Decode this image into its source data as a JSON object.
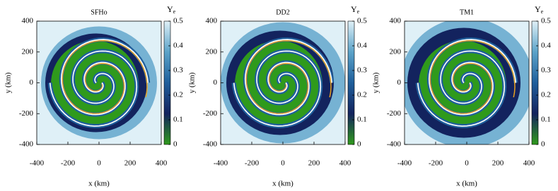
{
  "chart_data": [
    {
      "type": "heatmap",
      "title": "SFHo",
      "x_label": "x (km)",
      "y_label": "y (km)",
      "xlim": [
        -400,
        400
      ],
      "xticks": [
        -400,
        -200,
        0,
        200,
        400
      ],
      "ylim": [
        -400,
        400
      ],
      "yticks": [
        -400,
        -200,
        0,
        200,
        400
      ],
      "colorbar_label": "Y",
      "colorbar_label_sub": "e",
      "clim": [
        0,
        0.5
      ],
      "cticks": [
        0,
        0.1,
        0.2,
        0.3,
        0.4,
        0.5
      ],
      "colormap": [
        "#2f9a1c",
        "#13235e",
        "#1f5f9c",
        "#5ba3c9",
        "#dff0f7"
      ]
    },
    {
      "type": "heatmap",
      "title": "DD2",
      "x_label": "x (km)",
      "y_label": "y (km)",
      "xlim": [
        -400,
        400
      ],
      "xticks": [
        -400,
        -200,
        0,
        200,
        400
      ],
      "ylim": [
        -400,
        400
      ],
      "yticks": [
        -400,
        -200,
        0,
        200,
        400
      ],
      "colorbar_label": "Y",
      "colorbar_label_sub": "e",
      "clim": [
        0,
        0.5
      ],
      "cticks": [
        0,
        0.1,
        0.2,
        0.3,
        0.4,
        0.5
      ],
      "colormap": [
        "#2f9a1c",
        "#13235e",
        "#1f5f9c",
        "#5ba3c9",
        "#dff0f7"
      ]
    },
    {
      "type": "heatmap",
      "title": "TM1",
      "x_label": "x (km)",
      "y_label": "y (km)",
      "xlim": [
        -400,
        400
      ],
      "xticks": [
        -400,
        -200,
        0,
        200,
        400
      ],
      "ylim": [
        -400,
        400
      ],
      "yticks": [
        -400,
        -200,
        0,
        200,
        400
      ],
      "colorbar_label": "Y",
      "colorbar_label_sub": "e",
      "clim": [
        0,
        0.5
      ],
      "cticks": [
        0,
        0.1,
        0.2,
        0.3,
        0.4,
        0.5
      ],
      "colormap": [
        "#2f9a1c",
        "#13235e",
        "#1f5f9c",
        "#5ba3c9",
        "#dff0f7"
      ]
    }
  ]
}
